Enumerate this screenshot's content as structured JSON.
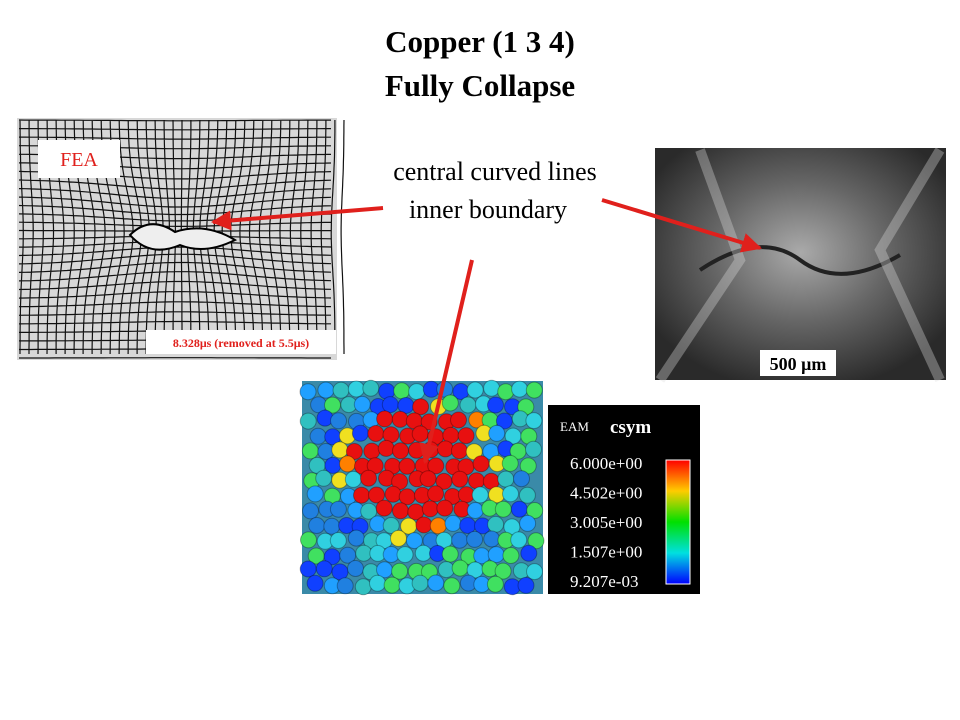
{
  "title": {
    "line1": "Copper (1 3 4)",
    "line2": "Fully Collapse"
  },
  "fea_panel": {
    "label": "FEA",
    "time_label": "8.328μs (removed at 5.5μs)"
  },
  "annotation": {
    "line1": "central curved lines",
    "line2": "inner boundary"
  },
  "micrograph": {
    "scale_bar": "500 μm"
  },
  "eam_panel": {
    "label": "EAM",
    "legend_title": "csym",
    "legend_values": [
      "6.000e+00",
      "4.502e+00",
      "3.005e+00",
      "1.507e+00",
      "9.207e-03"
    ]
  }
}
